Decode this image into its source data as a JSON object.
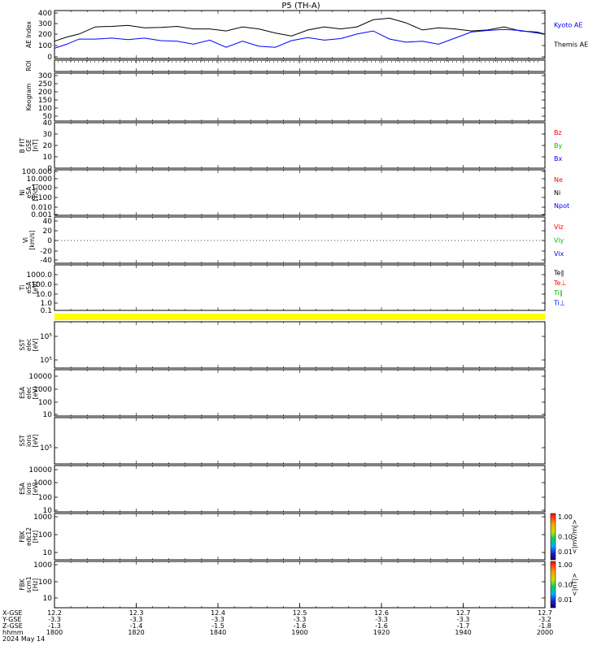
{
  "title": "P5 (TH-A)",
  "panels": [
    {
      "id": "ae",
      "ylabel": [
        "AE Index"
      ],
      "ticks": [
        "400",
        "300",
        "200",
        "100",
        "0"
      ],
      "ylim": [
        -50,
        420
      ],
      "legend": [
        {
          "text": "Kyoto AE",
          "color": "#0000ff"
        },
        {
          "text": "Themis AE",
          "color": "#000000"
        }
      ]
    },
    {
      "id": "roi",
      "ylabel": [
        "ROI"
      ],
      "ticks": [],
      "legend": []
    },
    {
      "id": "keo",
      "ylabel": [
        "Keogram"
      ],
      "ticks": [
        "300",
        "250",
        "200",
        "150",
        "100",
        "50"
      ],
      "ylim": [
        0,
        300
      ],
      "legend": []
    },
    {
      "id": "bfit",
      "ylabel": [
        "B FIT",
        "GSE",
        "[nT]"
      ],
      "ticks": [
        "40",
        "30",
        "20",
        "10",
        "0"
      ],
      "ylim": [
        0,
        40
      ],
      "legend": [
        {
          "text": "Bz",
          "color": "#ff0000"
        },
        {
          "text": "By",
          "color": "#00c000"
        },
        {
          "text": "Bx",
          "color": "#0000ff"
        }
      ]
    },
    {
      "id": "ni",
      "ylabel": [
        "Ni",
        "eSA",
        "[1/cc]"
      ],
      "ticks": [
        "100.000",
        "10.000",
        "1.000",
        "0.100",
        "0.010",
        "0.001"
      ],
      "legend": [
        {
          "text": "Ne",
          "color": "#ff0000"
        },
        {
          "text": "Ni",
          "color": "#000000"
        },
        {
          "text": "Npot",
          "color": "#0000ff"
        }
      ]
    },
    {
      "id": "vi",
      "ylabel": [
        "Vi",
        "[km/s]"
      ],
      "ticks": [
        "40",
        "20",
        "0",
        "-20",
        "-40"
      ],
      "ylim": [
        -50,
        50
      ],
      "legend": [
        {
          "text": "Viz",
          "color": "#ff0000"
        },
        {
          "text": "Viy",
          "color": "#00c000"
        },
        {
          "text": "Vix",
          "color": "#0000ff"
        }
      ]
    },
    {
      "id": "ti",
      "ylabel": [
        "Ti",
        "eSA",
        "[eV]"
      ],
      "ticks": [
        "1000.0",
        "100.0",
        "10.0",
        "1.0",
        "0.1"
      ],
      "legend": [
        {
          "text": "Te∥",
          "color": "#000000"
        },
        {
          "text": "Te⊥",
          "color": "#ff0000"
        },
        {
          "text": "Ti∥",
          "color": "#00c000"
        },
        {
          "text": "Ti⊥",
          "color": "#0000ff"
        }
      ]
    },
    {
      "id": "sst_e",
      "ylabel": [
        "SST",
        "elec",
        "[eV]"
      ],
      "ticks": [
        "10⁵",
        "10⁵"
      ],
      "legend": []
    },
    {
      "id": "esa_e",
      "ylabel": [
        "ESA",
        "elec",
        "[eV]"
      ],
      "ticks": [
        "10000",
        "1000",
        "100",
        "10"
      ],
      "legend": []
    },
    {
      "id": "sst_i",
      "ylabel": [
        "SST",
        "ions",
        "[eV]"
      ],
      "ticks": [
        "10⁵"
      ],
      "legend": []
    },
    {
      "id": "esa_i",
      "ylabel": [
        "ESA",
        "ions",
        "[eV]"
      ],
      "ticks": [
        "10000",
        "1000",
        "100",
        "10"
      ],
      "legend": []
    },
    {
      "id": "fbk_e",
      "ylabel": [
        "FBK",
        "edc12",
        "[Hz]"
      ],
      "ticks": [
        "1000",
        "100",
        "10"
      ],
      "legend": [],
      "colorbar": {
        "ticks": [
          "1.00",
          "0.10",
          "0.01"
        ],
        "label": "<|mV/m|>"
      }
    },
    {
      "id": "fbk_b",
      "ylabel": [
        "FBK",
        "scm1",
        "[Hz]"
      ],
      "ticks": [
        "1000",
        "100",
        "10"
      ],
      "legend": [],
      "colorbar": {
        "ticks": [
          "1.00",
          "0.10",
          "0.01"
        ],
        "label": "<|nT|>"
      }
    }
  ],
  "xaxis": {
    "row_labels": [
      "X-GSE",
      "Y-GSE",
      "Z-GSE",
      "hhmm",
      "2024 May 14"
    ],
    "columns": [
      {
        "x": "12.2",
        "y": "-3.3",
        "z": "-1.3",
        "t": "1800"
      },
      {
        "x": "12.3",
        "y": "-3.3",
        "z": "-1.4",
        "t": "1820"
      },
      {
        "x": "12.4",
        "y": "-3.3",
        "z": "-1.5",
        "t": "1840"
      },
      {
        "x": "12.5",
        "y": "-3.3",
        "z": "-1.6",
        "t": "1900"
      },
      {
        "x": "12.6",
        "y": "-3.3",
        "z": "-1.6",
        "t": "1920"
      },
      {
        "x": "12.7",
        "y": "-3.3",
        "z": "-1.7",
        "t": "1940"
      },
      {
        "x": "12.7",
        "y": "-3.2",
        "z": "-1.8",
        "t": "2000"
      }
    ]
  },
  "chart_data": {
    "type": "line",
    "title": "P5 (TH-A)",
    "xlabel": "hhmm",
    "ylabel": "AE Index",
    "xlim": [
      0,
      120
    ],
    "ylim": [
      -50,
      420
    ],
    "x_tick_labels": [
      "1800",
      "1820",
      "1840",
      "1900",
      "1920",
      "1940",
      "2000"
    ],
    "series": [
      {
        "name": "Themis AE",
        "color": "#000000",
        "x": [
          0,
          3,
          6,
          10,
          14,
          18,
          22,
          26,
          30,
          34,
          38,
          42,
          46,
          50,
          54,
          58,
          62,
          66,
          70,
          74,
          78,
          82,
          86,
          90,
          94,
          98,
          102,
          106,
          110,
          114,
          118,
          120
        ],
        "y": [
          120,
          160,
          190,
          260,
          265,
          275,
          250,
          255,
          265,
          240,
          240,
          220,
          260,
          240,
          200,
          170,
          230,
          260,
          240,
          260,
          330,
          345,
          300,
          230,
          250,
          240,
          220,
          230,
          260,
          220,
          210,
          190
        ]
      },
      {
        "name": "Kyoto AE",
        "color": "#0000ff",
        "x": [
          0,
          3,
          6,
          10,
          14,
          18,
          22,
          26,
          30,
          34,
          38,
          42,
          46,
          50,
          54,
          58,
          62,
          66,
          70,
          74,
          78,
          82,
          86,
          90,
          94,
          98,
          102,
          106,
          110,
          114,
          118,
          120
        ],
        "y": [
          50,
          90,
          140,
          140,
          150,
          135,
          150,
          125,
          120,
          90,
          130,
          60,
          120,
          70,
          60,
          125,
          155,
          130,
          145,
          190,
          220,
          140,
          110,
          120,
          90,
          150,
          210,
          225,
          235,
          225,
          200,
          190
        ]
      }
    ]
  }
}
